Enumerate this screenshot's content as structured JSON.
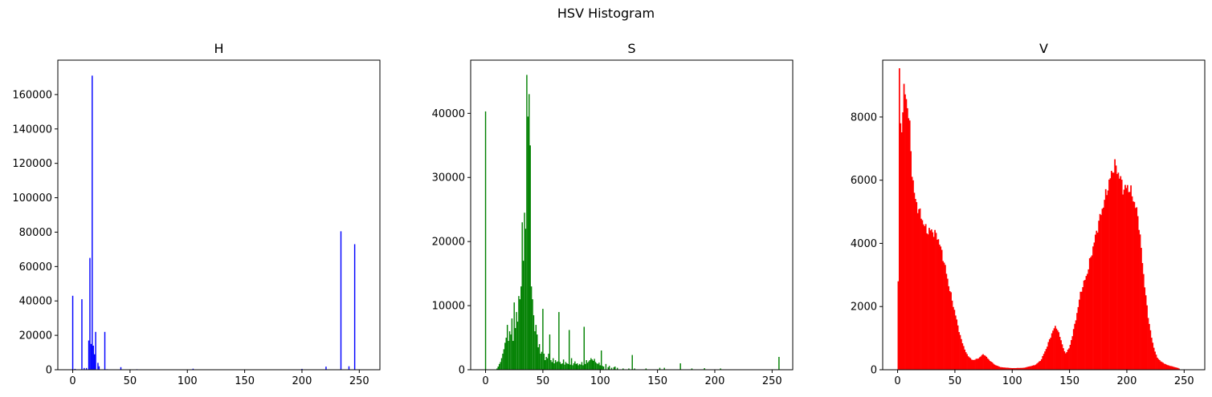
{
  "figure": {
    "suptitle": "HSV Histogram"
  },
  "chart_data": [
    {
      "type": "bar",
      "title": "H",
      "color": "#0000ff",
      "xlim": [
        -13,
        268
      ],
      "ylim": [
        0,
        180000
      ],
      "xticks": [
        0,
        50,
        100,
        150,
        200,
        250
      ],
      "yticks": [
        0,
        20000,
        40000,
        60000,
        80000,
        100000,
        120000,
        140000,
        160000
      ],
      "bins": [
        [
          0,
          43000
        ],
        [
          2,
          500
        ],
        [
          8,
          41000
        ],
        [
          10,
          1000
        ],
        [
          12,
          1000
        ],
        [
          14,
          17000
        ],
        [
          15,
          65000
        ],
        [
          16,
          15000
        ],
        [
          17,
          171000
        ],
        [
          18,
          14000
        ],
        [
          19,
          9000
        ],
        [
          20,
          22000
        ],
        [
          22,
          4000
        ],
        [
          23,
          2000
        ],
        [
          28,
          22000
        ],
        [
          30,
          300
        ],
        [
          42,
          1500
        ],
        [
          56,
          300
        ],
        [
          84,
          200
        ],
        [
          105,
          600
        ],
        [
          112,
          200
        ],
        [
          150,
          200
        ],
        [
          176,
          200
        ],
        [
          200,
          500
        ],
        [
          221,
          1800
        ],
        [
          234,
          80500
        ],
        [
          241,
          2000
        ],
        [
          246,
          73000
        ]
      ]
    },
    {
      "type": "bar",
      "title": "S",
      "color": "#008000",
      "xlim": [
        -13,
        268
      ],
      "ylim": [
        0,
        48300
      ],
      "xticks": [
        0,
        50,
        100,
        150,
        200,
        250
      ],
      "yticks": [
        0,
        10000,
        20000,
        30000,
        40000
      ],
      "bins": [
        [
          0,
          40300
        ],
        [
          10,
          200
        ],
        [
          11,
          500
        ],
        [
          12,
          900
        ],
        [
          13,
          1200
        ],
        [
          14,
          1800
        ],
        [
          15,
          2500
        ],
        [
          16,
          3200
        ],
        [
          17,
          4200
        ],
        [
          18,
          5000
        ],
        [
          19,
          7000
        ],
        [
          20,
          4500
        ],
        [
          21,
          6000
        ],
        [
          22,
          5500
        ],
        [
          23,
          8000
        ],
        [
          24,
          4500
        ],
        [
          25,
          10500
        ],
        [
          26,
          6500
        ],
        [
          27,
          9000
        ],
        [
          28,
          7500
        ],
        [
          29,
          11500
        ],
        [
          30,
          11000
        ],
        [
          31,
          13000
        ],
        [
          32,
          23000
        ],
        [
          33,
          17000
        ],
        [
          34,
          24500
        ],
        [
          35,
          22000
        ],
        [
          36,
          46000
        ],
        [
          37,
          39500
        ],
        [
          38,
          43000
        ],
        [
          39,
          35000
        ],
        [
          40,
          13000
        ],
        [
          41,
          11000
        ],
        [
          42,
          8500
        ],
        [
          43,
          6000
        ],
        [
          44,
          7000
        ],
        [
          45,
          5500
        ],
        [
          46,
          3500
        ],
        [
          47,
          4000
        ],
        [
          48,
          2500
        ],
        [
          49,
          2800
        ],
        [
          50,
          9500
        ],
        [
          51,
          2500
        ],
        [
          52,
          1500
        ],
        [
          53,
          2000
        ],
        [
          54,
          1800
        ],
        [
          55,
          2500
        ],
        [
          56,
          5500
        ],
        [
          57,
          1500
        ],
        [
          58,
          1200
        ],
        [
          59,
          1800
        ],
        [
          60,
          1000
        ],
        [
          61,
          1500
        ],
        [
          62,
          1200
        ],
        [
          63,
          1300
        ],
        [
          64,
          9000
        ],
        [
          65,
          1200
        ],
        [
          66,
          900
        ],
        [
          67,
          1000
        ],
        [
          68,
          1600
        ],
        [
          69,
          800
        ],
        [
          70,
          1200
        ],
        [
          71,
          1000
        ],
        [
          72,
          900
        ],
        [
          73,
          6200
        ],
        [
          74,
          800
        ],
        [
          75,
          1800
        ],
        [
          76,
          700
        ],
        [
          77,
          1000
        ],
        [
          78,
          1300
        ],
        [
          79,
          900
        ],
        [
          80,
          1000
        ],
        [
          81,
          700
        ],
        [
          82,
          900
        ],
        [
          83,
          800
        ],
        [
          84,
          1200
        ],
        [
          85,
          700
        ],
        [
          86,
          6700
        ],
        [
          87,
          900
        ],
        [
          88,
          1500
        ],
        [
          89,
          1100
        ],
        [
          90,
          1300
        ],
        [
          91,
          1500
        ],
        [
          92,
          1800
        ],
        [
          93,
          1600
        ],
        [
          94,
          1400
        ],
        [
          95,
          1700
        ],
        [
          96,
          1200
        ],
        [
          97,
          1000
        ],
        [
          98,
          900
        ],
        [
          99,
          1100
        ],
        [
          100,
          700
        ],
        [
          101,
          3000
        ],
        [
          102,
          600
        ],
        [
          103,
          500
        ],
        [
          105,
          900
        ],
        [
          107,
          400
        ],
        [
          108,
          600
        ],
        [
          110,
          300
        ],
        [
          112,
          400
        ],
        [
          113,
          500
        ],
        [
          115,
          300
        ],
        [
          120,
          200
        ],
        [
          125,
          200
        ],
        [
          128,
          2300
        ],
        [
          130,
          200
        ],
        [
          140,
          200
        ],
        [
          152,
          300
        ],
        [
          156,
          300
        ],
        [
          170,
          1000
        ],
        [
          180,
          200
        ],
        [
          191,
          250
        ],
        [
          205,
          200
        ],
        [
          256,
          2000
        ]
      ]
    },
    {
      "type": "bar",
      "title": "V",
      "color": "#ff0000",
      "xlim": [
        -13,
        268
      ],
      "ylim": [
        0,
        9800
      ],
      "xticks": [
        0,
        50,
        100,
        150,
        200,
        250
      ],
      "yticks": [
        0,
        2000,
        4000,
        6000,
        8000
      ],
      "profile": [
        [
          0,
          400
        ],
        [
          0.5,
          2800
        ],
        [
          1.5,
          9500
        ],
        [
          2.5,
          7600
        ],
        [
          4,
          7800
        ],
        [
          5,
          8800
        ],
        [
          7,
          8700
        ],
        [
          10,
          8000
        ],
        [
          12,
          6500
        ],
        [
          15,
          5400
        ],
        [
          20,
          4900
        ],
        [
          25,
          4400
        ],
        [
          30,
          4400
        ],
        [
          35,
          4200
        ],
        [
          40,
          3500
        ],
        [
          45,
          2600
        ],
        [
          50,
          1800
        ],
        [
          55,
          1000
        ],
        [
          60,
          500
        ],
        [
          65,
          300
        ],
        [
          70,
          350
        ],
        [
          75,
          500
        ],
        [
          80,
          300
        ],
        [
          85,
          150
        ],
        [
          90,
          80
        ],
        [
          100,
          50
        ],
        [
          110,
          60
        ],
        [
          120,
          150
        ],
        [
          125,
          300
        ],
        [
          130,
          700
        ],
        [
          135,
          1200
        ],
        [
          138,
          1400
        ],
        [
          142,
          1000
        ],
        [
          146,
          500
        ],
        [
          150,
          700
        ],
        [
          155,
          1500
        ],
        [
          160,
          2500
        ],
        [
          165,
          3000
        ],
        [
          170,
          3800
        ],
        [
          175,
          4600
        ],
        [
          180,
          5300
        ],
        [
          185,
          6000
        ],
        [
          189,
          6500
        ],
        [
          193,
          6200
        ],
        [
          197,
          5700
        ],
        [
          201,
          5800
        ],
        [
          205,
          5500
        ],
        [
          210,
          4800
        ],
        [
          214,
          3200
        ],
        [
          218,
          1800
        ],
        [
          222,
          900
        ],
        [
          226,
          400
        ],
        [
          230,
          250
        ],
        [
          235,
          150
        ],
        [
          240,
          100
        ],
        [
          245,
          50
        ],
        [
          247,
          0
        ]
      ]
    }
  ]
}
